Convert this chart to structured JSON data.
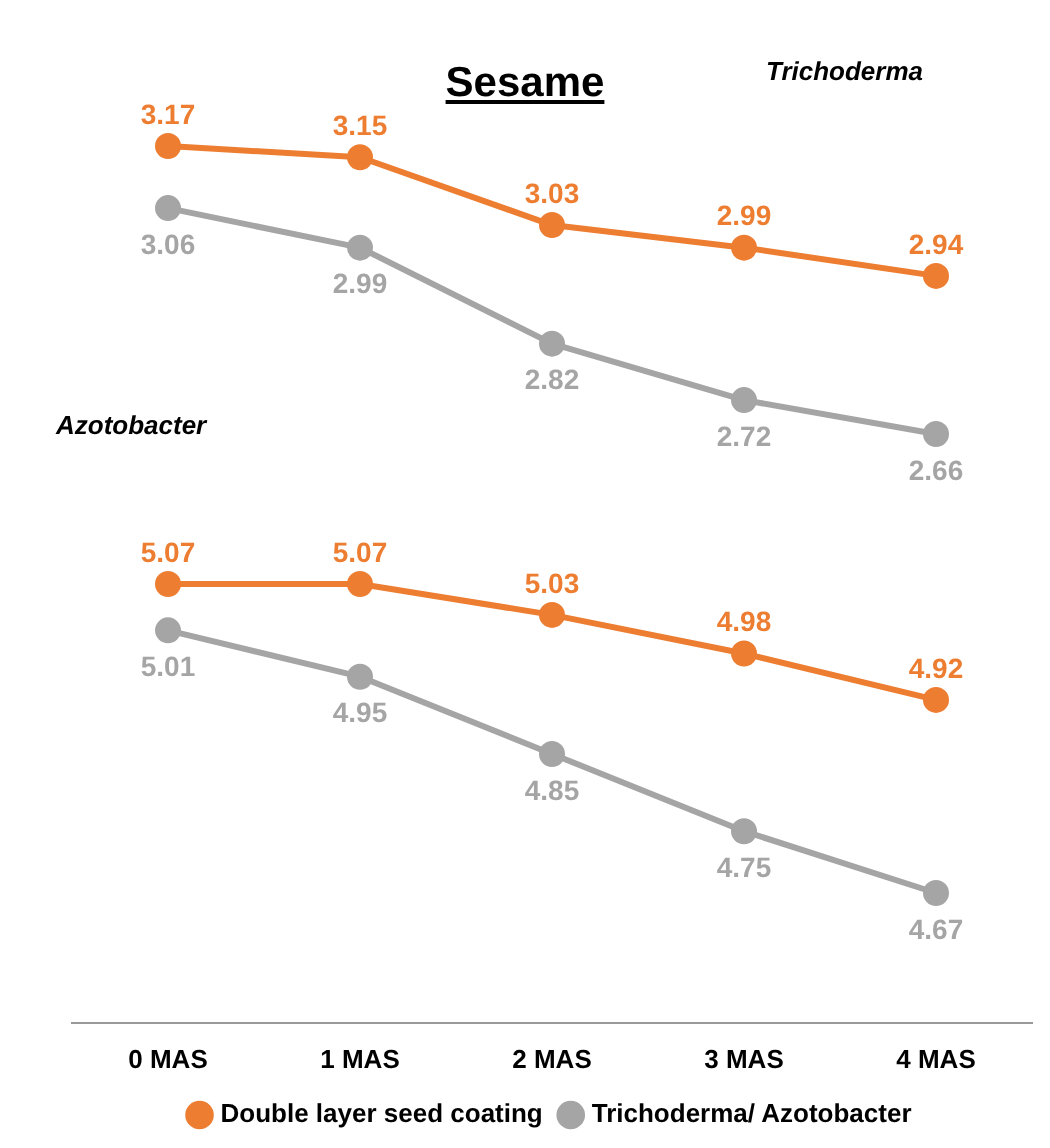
{
  "chart_data": [
    {
      "type": "line",
      "title": "Sesame",
      "annotations": [
        "Trichoderma"
      ],
      "categories": [
        null,
        null,
        null,
        null,
        null
      ],
      "series": [
        {
          "color": "#ed7d31",
          "values": [
            3.17,
            3.15,
            3.03,
            2.99,
            2.94
          ]
        },
        {
          "color": "#a5a5a5",
          "values": [
            3.06,
            2.99,
            2.82,
            2.72,
            2.66
          ]
        }
      ],
      "data_labels": true,
      "marker": "circle",
      "tick_labels": false
    },
    {
      "type": "line",
      "annotations": [
        "Azotobacter"
      ],
      "categories": [
        "0 MAS",
        "1 MAS",
        "2 MAS",
        "3 MAS",
        "4 MAS"
      ],
      "series": [
        {
          "name": "Double layer seed coating",
          "color": "#ed7d31",
          "values": [
            5.07,
            5.07,
            5.03,
            4.98,
            4.92
          ]
        },
        {
          "name": "Trichoderma/ Azotobacter",
          "color": "#a5a5a5",
          "values": [
            5.01,
            4.95,
            4.85,
            4.75,
            4.67
          ]
        }
      ],
      "data_labels": true,
      "marker": "circle",
      "tick_labels": "x",
      "legend": "bottom"
    }
  ]
}
